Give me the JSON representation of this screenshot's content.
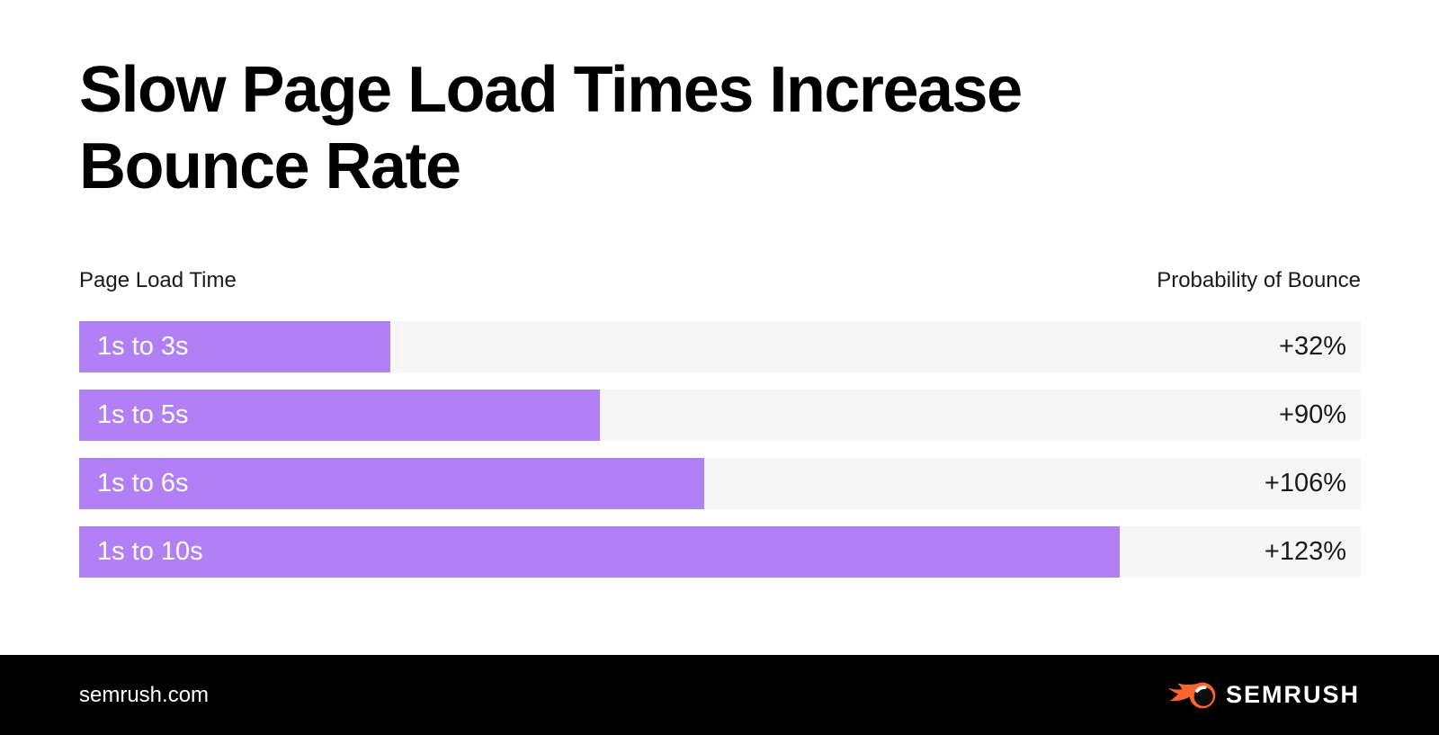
{
  "title": {
    "lines": [
      "Slow Page Load Times Increase",
      "Bounce Rate"
    ]
  },
  "chart_header": {
    "left_label": "Page Load Time",
    "right_label": "Probability of Bounce"
  },
  "chart_data": {
    "type": "bar",
    "orientation": "horizontal",
    "title": "Slow Page Load Times Increase Bounce Rate",
    "categories": [
      "1s to 3s",
      "1s to 5s",
      "1s to 6s",
      "1s to 10s"
    ],
    "values": [
      32,
      90,
      106,
      123
    ],
    "value_labels": [
      "+32%",
      "+90%",
      "+106%",
      "+123%"
    ],
    "axis_label_left": "Page Load Time",
    "axis_label_right": "Probability of Bounce",
    "bar_lengths_seconds": [
      3,
      5,
      6,
      10
    ],
    "bar_width_percent_of_track": [
      24.3,
      40.6,
      48.8,
      81.2
    ],
    "rows": [
      {
        "label": "1s to 3s",
        "value": 32,
        "value_label": "+32%",
        "bar_pct": 24.3
      },
      {
        "label": "1s to 5s",
        "value": 90,
        "value_label": "+90%",
        "bar_pct": 40.6
      },
      {
        "label": "1s to 6s",
        "value": 106,
        "value_label": "+106%",
        "bar_pct": 48.8
      },
      {
        "label": "1s to 10s",
        "value": 123,
        "value_label": "+123%",
        "bar_pct": 81.2
      }
    ],
    "colors": {
      "bar_fill": "#B180F5",
      "bar_track": "#F6F6F6",
      "label_on_bar": "#FFFFFF",
      "value_text": "#1A1A1A",
      "title_text": "#000000"
    },
    "legend": "none",
    "grid": "off"
  },
  "footer": {
    "website": "semrush.com",
    "brand": "SEMRUSH",
    "background": "#000000",
    "text_color": "#FFFFFF",
    "logo_orange": "#FF642D"
  }
}
